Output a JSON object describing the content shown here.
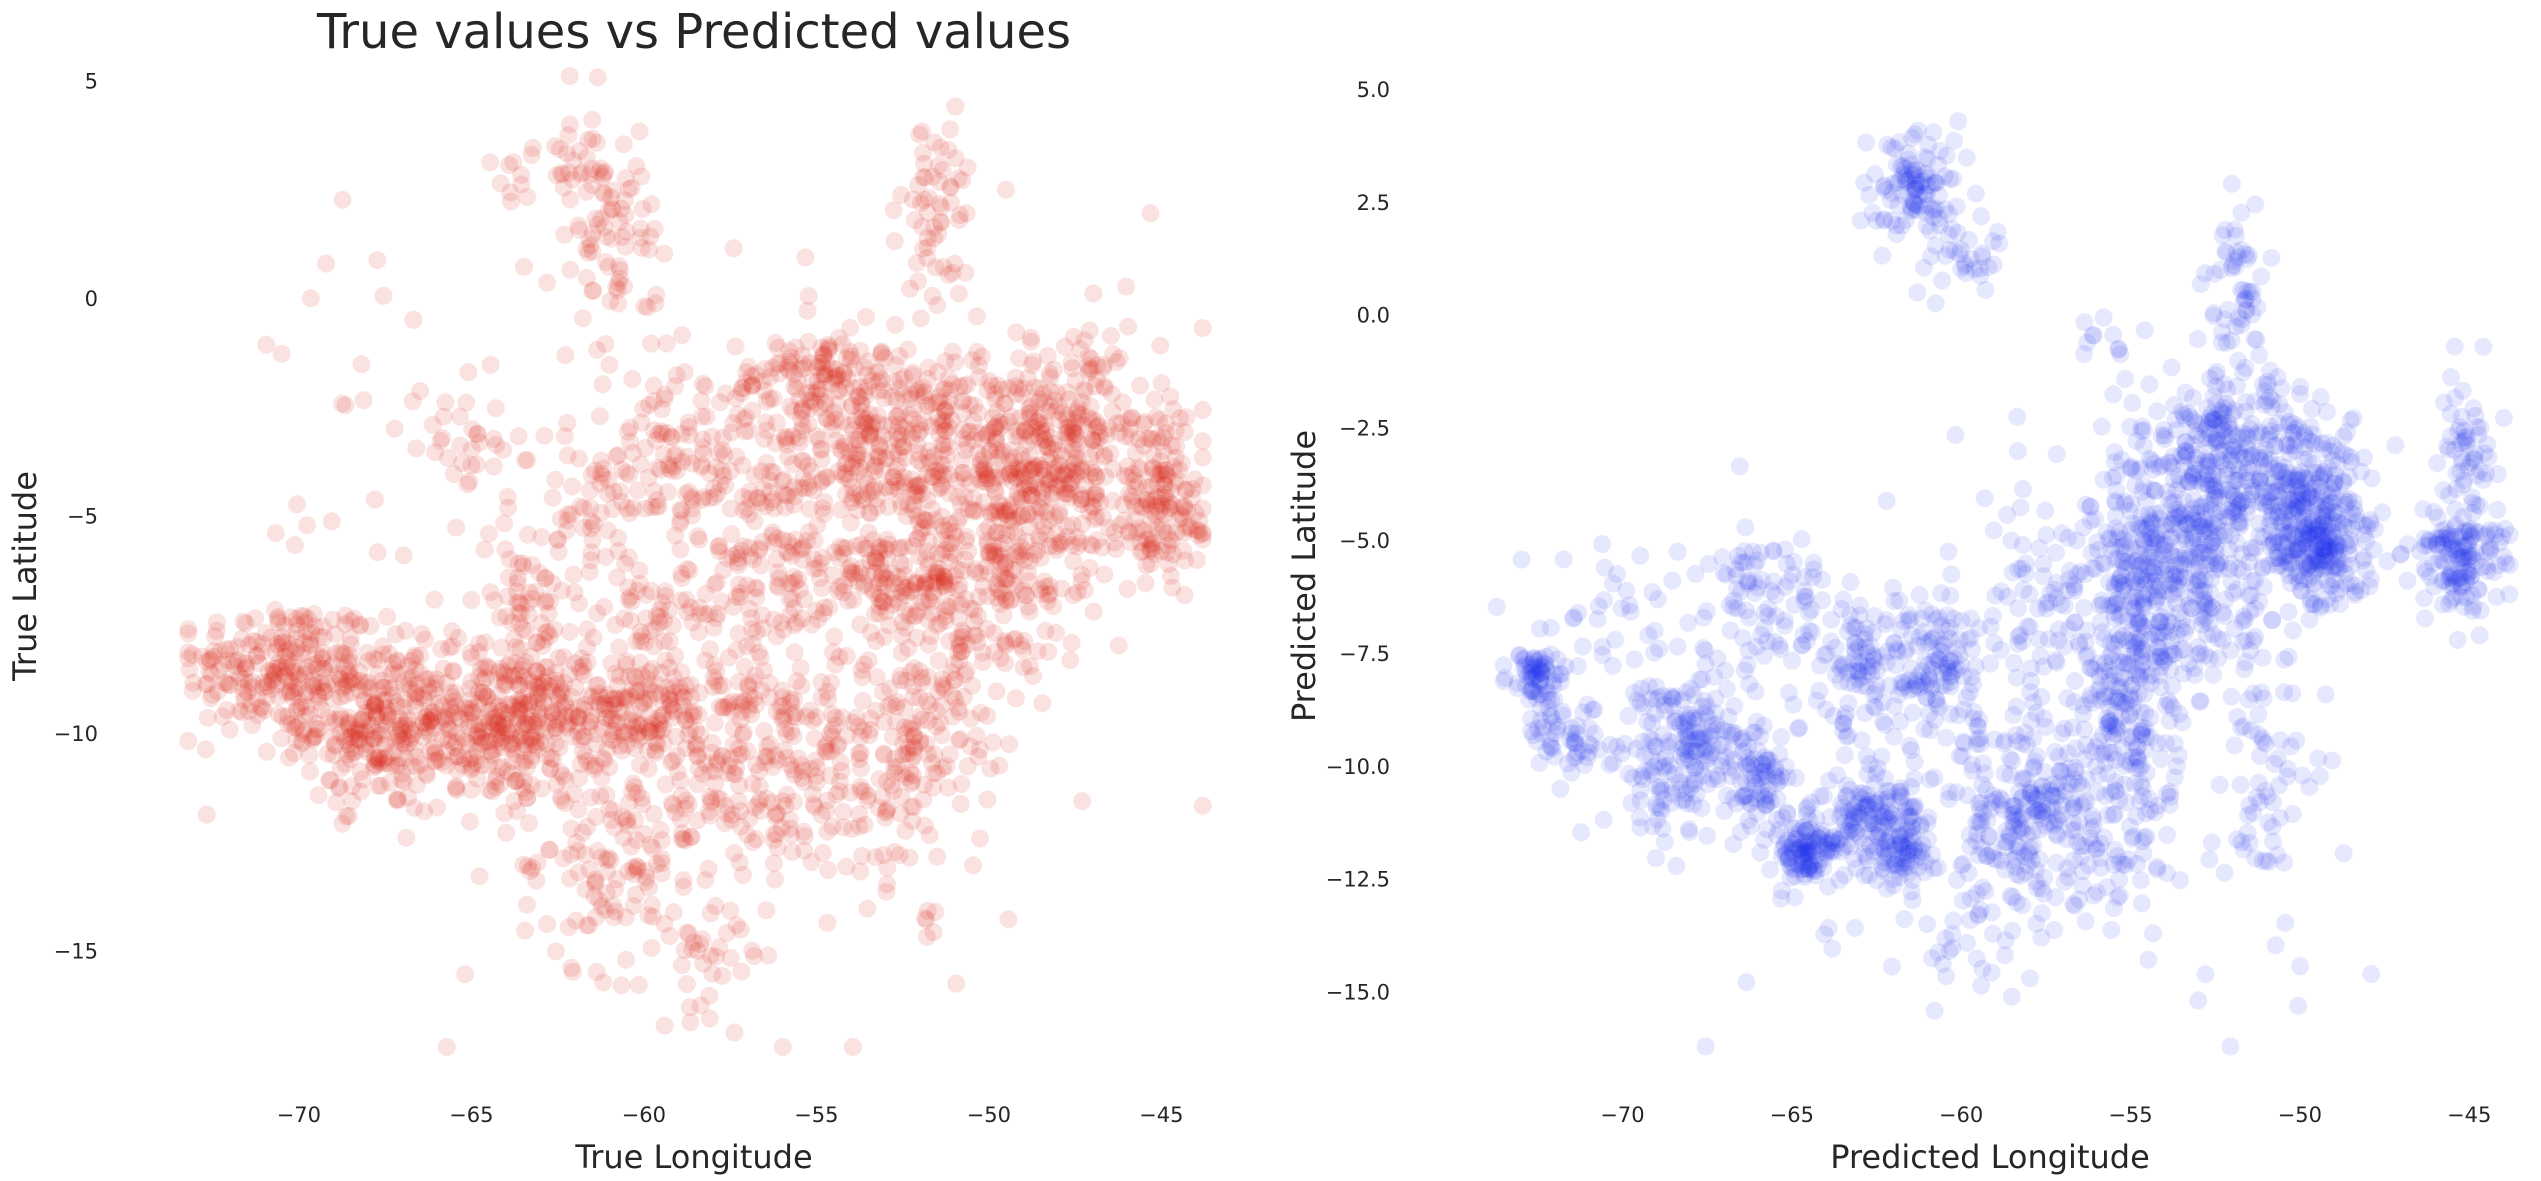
{
  "figure": {
    "title": "True values vs Predicted values"
  },
  "chart_data": [
    {
      "type": "scatter",
      "title": "True values vs Predicted values",
      "xlabel": "True Longitude",
      "ylabel": "True Latitude",
      "xlim": [
        -73.5,
        -43.5
      ],
      "ylim": [
        -17.5,
        5.5
      ],
      "xticks": [
        -70,
        -65,
        -60,
        -55,
        -50,
        -45
      ],
      "xtick_labels": [
        "−70",
        "−65",
        "−60",
        "−55",
        "−50",
        "−45"
      ],
      "yticks": [
        -15,
        -10,
        -5,
        0,
        5
      ],
      "ytick_labels": [
        "−15",
        "−10",
        "−5",
        "0",
        "5"
      ],
      "grid": false,
      "marker_color": "#d9200f",
      "alpha": 0.13,
      "clusters": [
        {
          "x": -70.5,
          "y": -8.5,
          "sx": 1.4,
          "sy": 0.8,
          "n": 220
        },
        {
          "x": -67.8,
          "y": -9.8,
          "sx": 1.0,
          "sy": 0.9,
          "n": 240
        },
        {
          "x": -64.0,
          "y": -9.8,
          "sx": 1.5,
          "sy": 0.9,
          "n": 340
        },
        {
          "x": -60.5,
          "y": -9.3,
          "sx": 1.6,
          "sy": 0.6,
          "n": 160
        },
        {
          "x": -57.0,
          "y": -10.8,
          "sx": 2.0,
          "sy": 1.2,
          "n": 220
        },
        {
          "x": -61.0,
          "y": -13.0,
          "sx": 1.3,
          "sy": 1.2,
          "n": 110
        },
        {
          "x": -58.0,
          "y": -15.0,
          "sx": 0.8,
          "sy": 0.7,
          "n": 35
        },
        {
          "x": -53.0,
          "y": -10.5,
          "sx": 1.2,
          "sy": 1.5,
          "n": 130
        },
        {
          "x": -51.3,
          "y": -8.5,
          "sx": 0.9,
          "sy": 2.0,
          "n": 120
        },
        {
          "x": -56.5,
          "y": -6.5,
          "sx": 1.3,
          "sy": 1.4,
          "n": 140
        },
        {
          "x": -52.5,
          "y": -3.5,
          "sx": 2.4,
          "sy": 1.3,
          "n": 480
        },
        {
          "x": -55.0,
          "y": -1.8,
          "sx": 1.2,
          "sy": 0.5,
          "n": 90
        },
        {
          "x": -48.0,
          "y": -3.5,
          "sx": 1.5,
          "sy": 1.3,
          "n": 330
        },
        {
          "x": -45.0,
          "y": -4.8,
          "sx": 0.9,
          "sy": 1.0,
          "n": 140
        },
        {
          "x": -49.5,
          "y": -6.5,
          "sx": 1.2,
          "sy": 0.9,
          "n": 130
        },
        {
          "x": -52.8,
          "y": -6.5,
          "sx": 1.0,
          "sy": 0.4,
          "n": 90
        },
        {
          "x": -59.3,
          "y": -3.8,
          "sx": 1.1,
          "sy": 1.0,
          "n": 100
        },
        {
          "x": -60.0,
          "y": -7.2,
          "sx": 0.8,
          "sy": 0.4,
          "n": 40
        },
        {
          "x": -63.5,
          "y": -7.0,
          "sx": 0.6,
          "sy": 0.6,
          "n": 40
        },
        {
          "x": -62.0,
          "y": -5.0,
          "sx": 0.9,
          "sy": 1.0,
          "n": 40
        },
        {
          "x": -65.0,
          "y": -3.5,
          "sx": 0.6,
          "sy": 0.4,
          "n": 25
        },
        {
          "x": -60.8,
          "y": 1.5,
          "sx": 0.6,
          "sy": 1.2,
          "n": 70
        },
        {
          "x": -62.0,
          "y": 3.0,
          "sx": 0.5,
          "sy": 0.8,
          "n": 30
        },
        {
          "x": -51.5,
          "y": 1.8,
          "sx": 0.5,
          "sy": 1.5,
          "n": 60
        },
        {
          "x": -63.7,
          "y": 3.0,
          "sx": 0.3,
          "sy": 0.4,
          "n": 10
        },
        {
          "x": -51.8,
          "y": -14.3,
          "sx": 0.15,
          "sy": 0.15,
          "n": 6
        },
        {
          "x": -68.0,
          "y": -4.0,
          "sx": 2.5,
          "sy": 2.5,
          "n": 30
        },
        {
          "x": -58.0,
          "y": -6.0,
          "sx": 6.0,
          "sy": 5.0,
          "n": 120
        }
      ]
    },
    {
      "type": "scatter",
      "xlabel": "Predicted Longitude",
      "ylabel": "Predicted Latitude",
      "xlim": [
        -74.5,
        -43.5
      ],
      "ylim": [
        -16.5,
        6.0
      ],
      "xticks": [
        -70,
        -65,
        -60,
        -55,
        -50,
        -45
      ],
      "xtick_labels": [
        "−70",
        "−65",
        "−60",
        "−55",
        "−50",
        "−45"
      ],
      "yticks": [
        -15.0,
        -12.5,
        -10.0,
        -7.5,
        -5.0,
        -2.5,
        0.0,
        2.5,
        5.0
      ],
      "ytick_labels": [
        "−15.0",
        "−12.5",
        "−10.0",
        "−7.5",
        "−5.0",
        "−2.5",
        "0.0",
        "2.5",
        "5.0"
      ],
      "grid": false,
      "marker_color": "#1a2ff0",
      "alpha": 0.11,
      "clusters": [
        {
          "x": -72.5,
          "y": -8.0,
          "sx": 0.4,
          "sy": 0.3,
          "n": 70
        },
        {
          "x": -71.8,
          "y": -9.3,
          "sx": 0.5,
          "sy": 0.4,
          "n": 50
        },
        {
          "x": -68.3,
          "y": -9.8,
          "sx": 1.0,
          "sy": 0.9,
          "n": 200
        },
        {
          "x": -66.0,
          "y": -10.2,
          "sx": 0.5,
          "sy": 0.6,
          "n": 70
        },
        {
          "x": -64.7,
          "y": -11.8,
          "sx": 0.5,
          "sy": 0.4,
          "n": 110
        },
        {
          "x": -62.8,
          "y": -11.2,
          "sx": 0.8,
          "sy": 0.6,
          "n": 130
        },
        {
          "x": -61.8,
          "y": -11.8,
          "sx": 0.5,
          "sy": 0.5,
          "n": 70
        },
        {
          "x": -57.8,
          "y": -11.0,
          "sx": 1.5,
          "sy": 1.2,
          "n": 280
        },
        {
          "x": -55.0,
          "y": -8.0,
          "sx": 0.7,
          "sy": 2.0,
          "n": 260
        },
        {
          "x": -53.3,
          "y": -5.2,
          "sx": 1.3,
          "sy": 1.5,
          "n": 400
        },
        {
          "x": -52.0,
          "y": -3.0,
          "sx": 1.0,
          "sy": 0.8,
          "n": 150
        },
        {
          "x": -50.0,
          "y": -3.8,
          "sx": 0.9,
          "sy": 1.0,
          "n": 200
        },
        {
          "x": -49.3,
          "y": -5.0,
          "sx": 0.7,
          "sy": 0.7,
          "n": 200
        },
        {
          "x": -45.3,
          "y": -5.3,
          "sx": 0.7,
          "sy": 0.6,
          "n": 150
        },
        {
          "x": -45.0,
          "y": -3.0,
          "sx": 0.4,
          "sy": 0.8,
          "n": 50
        },
        {
          "x": -57.3,
          "y": -6.0,
          "sx": 1.0,
          "sy": 1.3,
          "n": 80
        },
        {
          "x": -60.8,
          "y": -7.8,
          "sx": 0.8,
          "sy": 0.8,
          "n": 110
        },
        {
          "x": -63.0,
          "y": -7.8,
          "sx": 0.8,
          "sy": 0.8,
          "n": 80
        },
        {
          "x": -65.5,
          "y": -6.5,
          "sx": 1.0,
          "sy": 0.8,
          "n": 90
        },
        {
          "x": -61.2,
          "y": 2.8,
          "sx": 0.7,
          "sy": 0.6,
          "n": 110
        },
        {
          "x": -60.0,
          "y": 1.3,
          "sx": 0.7,
          "sy": 0.6,
          "n": 30
        },
        {
          "x": -51.8,
          "y": 0.5,
          "sx": 0.4,
          "sy": 1.0,
          "n": 60
        },
        {
          "x": -55.5,
          "y": -0.6,
          "sx": 0.4,
          "sy": 0.2,
          "n": 10
        },
        {
          "x": -70.0,
          "y": -7.0,
          "sx": 1.5,
          "sy": 1.0,
          "n": 40
        },
        {
          "x": -59.0,
          "y": -9.0,
          "sx": 6.0,
          "sy": 3.0,
          "n": 120
        },
        {
          "x": -59.5,
          "y": -13.5,
          "sx": 1.5,
          "sy": 1.0,
          "n": 40
        },
        {
          "x": -51.0,
          "y": -10.5,
          "sx": 0.7,
          "sy": 1.5,
          "n": 60
        }
      ]
    }
  ]
}
